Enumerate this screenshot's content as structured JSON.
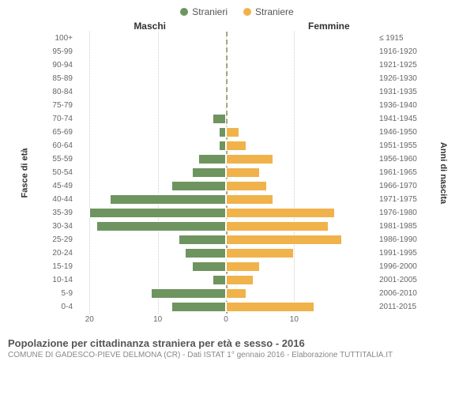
{
  "legend": {
    "male": {
      "label": "Stranieri",
      "color": "#6e9460"
    },
    "female": {
      "label": "Straniere",
      "color": "#f0b24a"
    }
  },
  "headers": {
    "male": "Maschi",
    "female": "Femmine"
  },
  "y_left_title": "Fasce di età",
  "y_right_title": "Anni di nascita",
  "chart": {
    "type": "population-pyramid",
    "x_max": 22,
    "x_ticks_left": [
      20,
      10,
      0
    ],
    "x_ticks_right": [
      0,
      10
    ],
    "grid_color": "#cccccc",
    "center_color": "#999966",
    "background_color": "#ffffff",
    "male_color": "#6e9460",
    "female_color": "#f0b24a",
    "bar_border": "#ffffff",
    "rows": [
      {
        "age": "100+",
        "birth": "≤ 1915",
        "m": 0,
        "f": 0
      },
      {
        "age": "95-99",
        "birth": "1916-1920",
        "m": 0,
        "f": 0
      },
      {
        "age": "90-94",
        "birth": "1921-1925",
        "m": 0,
        "f": 0
      },
      {
        "age": "85-89",
        "birth": "1926-1930",
        "m": 0,
        "f": 0
      },
      {
        "age": "80-84",
        "birth": "1931-1935",
        "m": 0,
        "f": 0
      },
      {
        "age": "75-79",
        "birth": "1936-1940",
        "m": 0,
        "f": 0
      },
      {
        "age": "70-74",
        "birth": "1941-1945",
        "m": 2,
        "f": 0
      },
      {
        "age": "65-69",
        "birth": "1946-1950",
        "m": 1,
        "f": 2
      },
      {
        "age": "60-64",
        "birth": "1951-1955",
        "m": 1,
        "f": 3
      },
      {
        "age": "55-59",
        "birth": "1956-1960",
        "m": 4,
        "f": 7
      },
      {
        "age": "50-54",
        "birth": "1961-1965",
        "m": 5,
        "f": 5
      },
      {
        "age": "45-49",
        "birth": "1966-1970",
        "m": 8,
        "f": 6
      },
      {
        "age": "40-44",
        "birth": "1971-1975",
        "m": 17,
        "f": 7
      },
      {
        "age": "35-39",
        "birth": "1976-1980",
        "m": 20,
        "f": 16
      },
      {
        "age": "30-34",
        "birth": "1981-1985",
        "m": 19,
        "f": 15
      },
      {
        "age": "25-29",
        "birth": "1986-1990",
        "m": 7,
        "f": 17
      },
      {
        "age": "20-24",
        "birth": "1991-1995",
        "m": 6,
        "f": 10
      },
      {
        "age": "15-19",
        "birth": "1996-2000",
        "m": 5,
        "f": 5
      },
      {
        "age": "10-14",
        "birth": "2001-2005",
        "m": 2,
        "f": 4
      },
      {
        "age": "5-9",
        "birth": "2006-2010",
        "m": 11,
        "f": 3
      },
      {
        "age": "0-4",
        "birth": "2011-2015",
        "m": 8,
        "f": 13
      }
    ]
  },
  "footer": {
    "title": "Popolazione per cittadinanza straniera per età e sesso - 2016",
    "subtitle": "COMUNE DI GADESCO-PIEVE DELMONA (CR) - Dati ISTAT 1° gennaio 2016 - Elaborazione TUTTITALIA.IT"
  }
}
